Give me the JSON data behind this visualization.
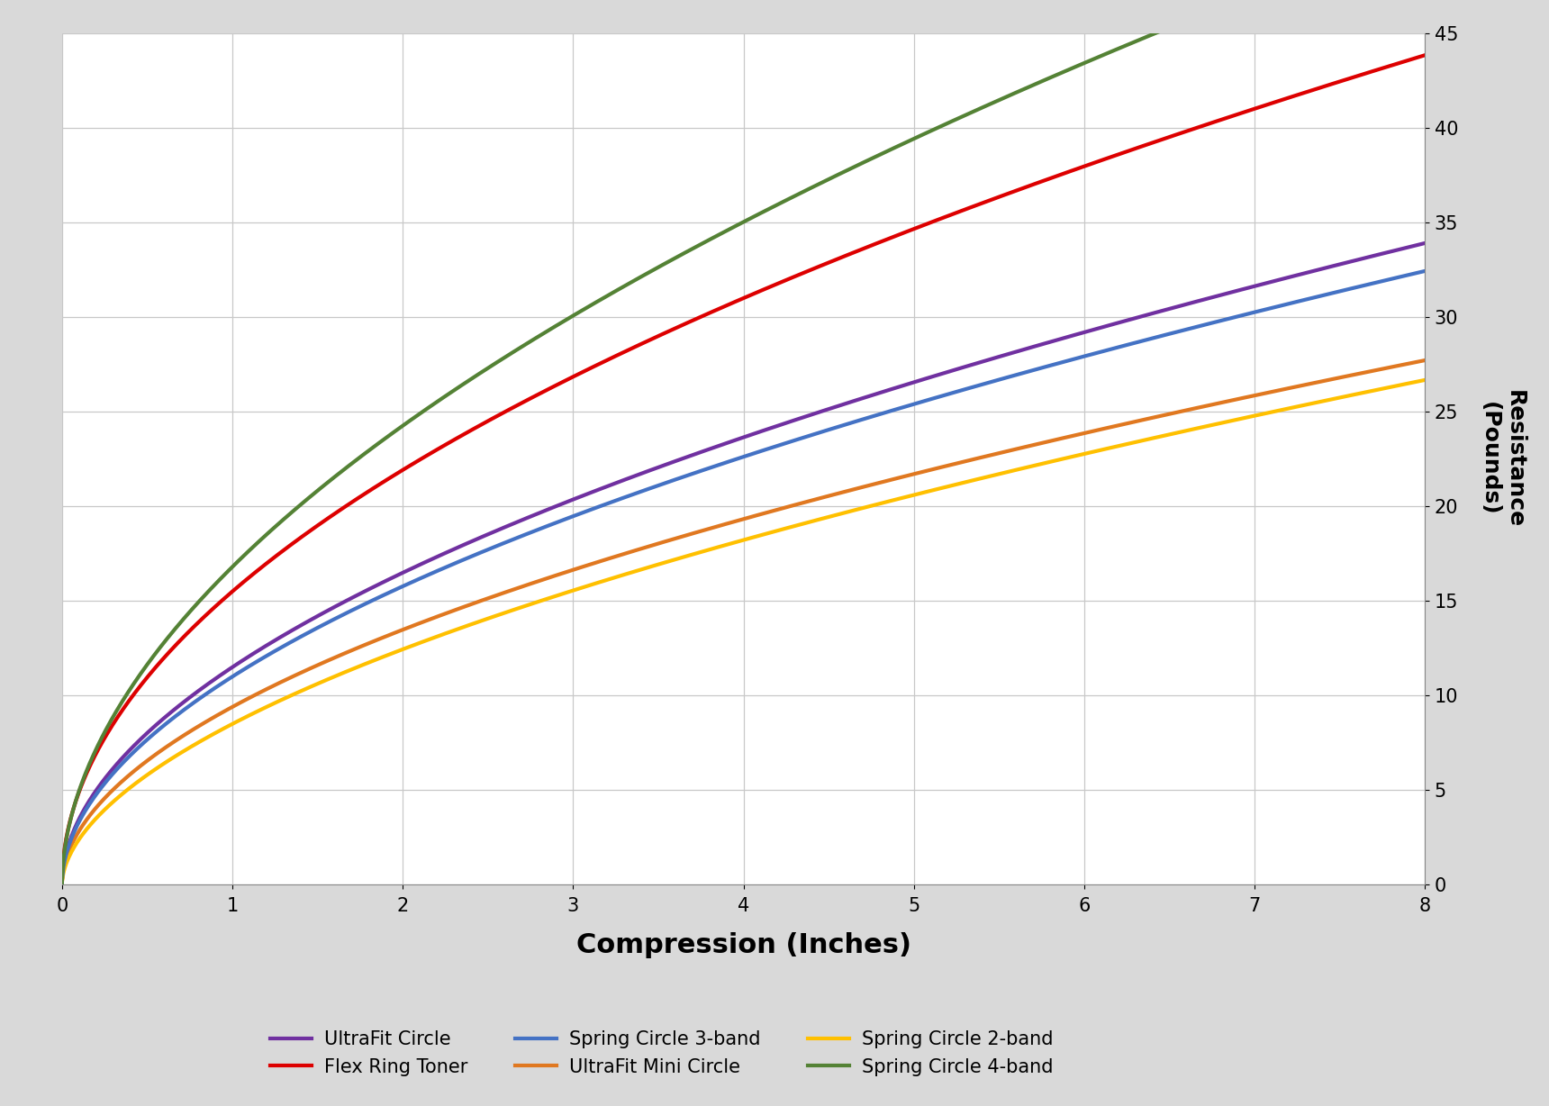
{
  "xlabel": "Compression (Inches)",
  "ylabel": "Resistance\n(Pounds)",
  "xlim": [
    0,
    8
  ],
  "ylim": [
    0,
    45
  ],
  "xticks": [
    0,
    1,
    2,
    3,
    4,
    5,
    6,
    7,
    8
  ],
  "yticks": [
    0,
    5,
    10,
    15,
    20,
    25,
    30,
    35,
    40,
    45
  ],
  "background_color": "#d9d9d9",
  "plot_bg_color": "#ffffff",
  "chart_area_color": "#ffffff",
  "series": [
    {
      "label": "UltraFit Circle",
      "color": "#7030a0",
      "coeff": 11.5,
      "exponent": 0.52
    },
    {
      "label": "UltraFit Mini Circle",
      "color": "#e07820",
      "coeff": 9.4,
      "exponent": 0.52
    },
    {
      "label": "Flex Ring Toner",
      "color": "#dd0000",
      "coeff": 15.5,
      "exponent": 0.5
    },
    {
      "label": "Spring Circle 2-band",
      "color": "#ffc000",
      "coeff": 8.5,
      "exponent": 0.55
    },
    {
      "label": "Spring Circle 3-band",
      "color": "#4472c4",
      "coeff": 11.0,
      "exponent": 0.52
    },
    {
      "label": "Spring Circle 4-band",
      "color": "#548235",
      "coeff": 16.8,
      "exponent": 0.53
    }
  ],
  "legend_order": [
    0,
    2,
    4,
    1,
    3,
    5
  ],
  "xlabel_fontsize": 22,
  "ylabel_fontsize": 18,
  "tick_fontsize": 15,
  "legend_fontsize": 15,
  "line_width": 3.0,
  "grid_color": "#c8c8c8",
  "legend_ncol": 3
}
